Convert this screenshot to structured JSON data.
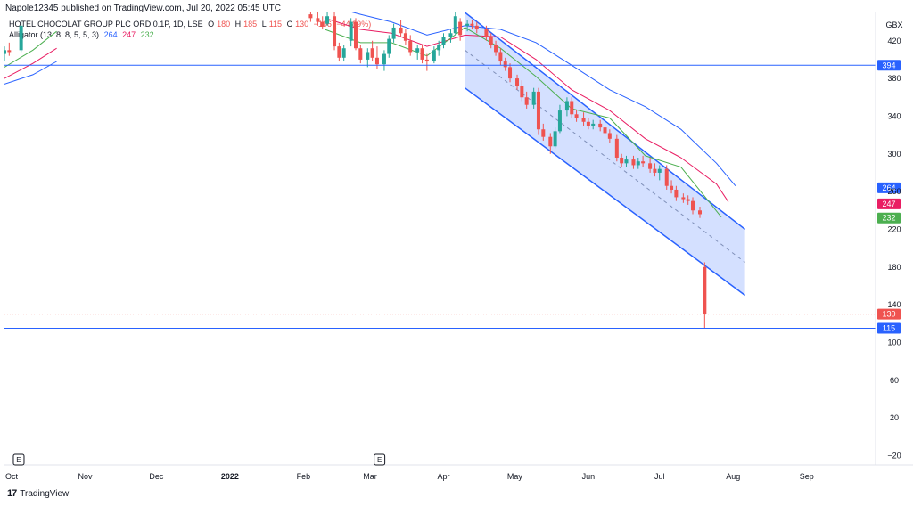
{
  "published": "Napole12345 published on TradingView.com, Jul 20, 2022 05:45 UTC",
  "legend": {
    "symbol": "HOTEL CHOCOLAT GROUP PLC ORD 0.1P, 1D, LSE",
    "o_label": "O",
    "o_value": "180",
    "h_label": "H",
    "h_value": "185",
    "l_label": "L",
    "l_value": "115",
    "c_label": "C",
    "c_value": "130",
    "change": "−106 (−44.89%)",
    "indicator": "Alligator (13, 8, 8, 5, 5, 3)",
    "jaw": "264",
    "teeth": "247",
    "lips": "232"
  },
  "currency": "GBX",
  "brand": "TradingView",
  "colors": {
    "up": "#26a69a",
    "down": "#ef5350",
    "jaw": "#2962ff",
    "teeth": "#e91e63",
    "lips": "#4caf50",
    "hline": "#2962ff",
    "channel": "#2962ff",
    "channel_fill": "rgba(41,98,255,0.2)"
  },
  "chart_data": {
    "type": "candlestick",
    "y_ticks": [
      420,
      380,
      340,
      300,
      260,
      220,
      180,
      140,
      100,
      60,
      20,
      -20
    ],
    "y_tick_labels": [
      "420",
      "380",
      "340",
      "300",
      "260",
      "220",
      "180",
      "140",
      "100",
      "60",
      "20",
      "−20"
    ],
    "ylim": [
      -30,
      450
    ],
    "x_ticks": [
      {
        "date": "2021-10-01",
        "label": "Oct",
        "bold": false
      },
      {
        "date": "2021-11-01",
        "label": "Nov",
        "bold": false
      },
      {
        "date": "2021-12-01",
        "label": "Dec",
        "bold": false
      },
      {
        "date": "2022-01-01",
        "label": "2022",
        "bold": true
      },
      {
        "date": "2022-02-01",
        "label": "Feb",
        "bold": false
      },
      {
        "date": "2022-03-01",
        "label": "Mar",
        "bold": false
      },
      {
        "date": "2022-04-01",
        "label": "Apr",
        "bold": false
      },
      {
        "date": "2022-05-01",
        "label": "May",
        "bold": false
      },
      {
        "date": "2022-06-01",
        "label": "Jun",
        "bold": false
      },
      {
        "date": "2022-07-01",
        "label": "Jul",
        "bold": false
      },
      {
        "date": "2022-08-01",
        "label": "Aug",
        "bold": false
      },
      {
        "date": "2022-09-01",
        "label": "Sep",
        "bold": false
      }
    ],
    "xlim": [
      "2021-09-28",
      "2022-09-30"
    ],
    "price_labels": [
      {
        "value": 394,
        "label": "394",
        "color": "#2962ff"
      },
      {
        "value": 264,
        "label": "264",
        "color": "#2962ff"
      },
      {
        "value": 247,
        "label": "247",
        "color": "#e91e63"
      },
      {
        "value": 232,
        "label": "232",
        "color": "#4caf50"
      },
      {
        "value": 130,
        "label": "130",
        "color": "#ef5350"
      },
      {
        "value": 115,
        "label": "115",
        "color": "#2962ff"
      }
    ],
    "horizontal_lines": [
      394,
      115
    ],
    "last_close_line": 130,
    "earnings_markers": [
      {
        "date": "2021-10-04",
        "label": "E"
      },
      {
        "date": "2022-03-05",
        "label": "E"
      }
    ],
    "channel": {
      "upper": [
        [
          "2022-04-10",
          450
        ],
        [
          "2022-08-06",
          220
        ]
      ],
      "lower": [
        [
          "2022-04-10",
          370
        ],
        [
          "2022-08-06",
          150
        ]
      ],
      "median": [
        [
          "2022-04-10",
          410
        ],
        [
          "2022-08-06",
          185
        ]
      ]
    },
    "series": [
      {
        "name": "Price",
        "ohlc": [
          [
            "2021-09-28",
            406,
            414,
            398,
            410
          ],
          [
            "2021-09-30",
            410,
            418,
            404,
            408
          ],
          [
            "2021-10-05",
            410,
            440,
            408,
            436
          ],
          [
            "2022-02-04",
            448,
            452,
            440,
            444
          ],
          [
            "2022-02-07",
            444,
            450,
            436,
            440
          ],
          [
            "2022-02-09",
            440,
            446,
            432,
            435
          ],
          [
            "2022-02-11",
            438,
            450,
            436,
            446
          ],
          [
            "2022-02-14",
            446,
            450,
            410,
            414
          ],
          [
            "2022-02-16",
            414,
            418,
            398,
            402
          ],
          [
            "2022-02-18",
            402,
            416,
            398,
            412
          ],
          [
            "2022-02-21",
            420,
            444,
            414,
            440
          ],
          [
            "2022-02-23",
            440,
            444,
            410,
            412
          ],
          [
            "2022-02-25",
            412,
            416,
            396,
            400
          ],
          [
            "2022-02-28",
            400,
            412,
            392,
            408
          ],
          [
            "2022-03-02",
            412,
            420,
            398,
            402
          ],
          [
            "2022-03-04",
            402,
            414,
            390,
            395
          ],
          [
            "2022-03-07",
            395,
            410,
            388,
            406
          ],
          [
            "2022-03-09",
            406,
            426,
            402,
            422
          ],
          [
            "2022-03-11",
            422,
            438,
            418,
            434
          ],
          [
            "2022-03-14",
            434,
            442,
            424,
            428
          ],
          [
            "2022-03-16",
            428,
            432,
            416,
            420
          ],
          [
            "2022-03-18",
            420,
            426,
            404,
            408
          ],
          [
            "2022-03-21",
            408,
            416,
            400,
            412
          ],
          [
            "2022-03-23",
            412,
            416,
            396,
            400
          ],
          [
            "2022-03-25",
            400,
            406,
            388,
            398
          ],
          [
            "2022-03-28",
            398,
            414,
            396,
            410
          ],
          [
            "2022-03-30",
            410,
            420,
            404,
            416
          ],
          [
            "2022-04-01",
            416,
            428,
            412,
            424
          ],
          [
            "2022-04-04",
            424,
            432,
            418,
            428
          ],
          [
            "2022-04-06",
            428,
            450,
            426,
            446
          ],
          [
            "2022-04-08",
            440,
            444,
            420,
            426
          ],
          [
            "2022-04-11",
            436,
            442,
            430,
            438
          ],
          [
            "2022-04-13",
            438,
            442,
            432,
            436
          ],
          [
            "2022-04-15",
            436,
            440,
            428,
            432
          ],
          [
            "2022-04-19",
            432,
            436,
            420,
            424
          ],
          [
            "2022-04-21",
            424,
            428,
            412,
            416
          ],
          [
            "2022-04-23",
            416,
            420,
            404,
            408
          ],
          [
            "2022-04-25",
            408,
            412,
            394,
            398
          ],
          [
            "2022-04-27",
            398,
            402,
            388,
            392
          ],
          [
            "2022-04-29",
            392,
            396,
            376,
            380
          ],
          [
            "2022-05-02",
            380,
            384,
            368,
            372
          ],
          [
            "2022-05-04",
            372,
            378,
            356,
            360
          ],
          [
            "2022-05-06",
            360,
            366,
            348,
            352
          ],
          [
            "2022-05-09",
            352,
            370,
            348,
            366
          ],
          [
            "2022-05-11",
            366,
            370,
            320,
            326
          ],
          [
            "2022-05-13",
            326,
            332,
            314,
            318
          ],
          [
            "2022-05-16",
            318,
            322,
            300,
            308
          ],
          [
            "2022-05-18",
            308,
            328,
            306,
            324
          ],
          [
            "2022-05-20",
            324,
            352,
            322,
            346
          ],
          [
            "2022-05-23",
            346,
            360,
            340,
            356
          ],
          [
            "2022-05-25",
            356,
            360,
            338,
            342
          ],
          [
            "2022-05-27",
            342,
            346,
            334,
            338
          ],
          [
            "2022-05-30",
            338,
            344,
            330,
            334
          ],
          [
            "2022-06-01",
            334,
            338,
            326,
            330
          ],
          [
            "2022-06-03",
            330,
            336,
            326,
            332
          ],
          [
            "2022-06-06",
            332,
            336,
            324,
            328
          ],
          [
            "2022-06-08",
            328,
            332,
            318,
            322
          ],
          [
            "2022-06-10",
            322,
            326,
            312,
            316
          ],
          [
            "2022-06-13",
            316,
            320,
            292,
            296
          ],
          [
            "2022-06-15",
            296,
            300,
            286,
            290
          ],
          [
            "2022-06-17",
            290,
            298,
            286,
            294
          ],
          [
            "2022-06-20",
            294,
            298,
            284,
            288
          ],
          [
            "2022-06-22",
            288,
            296,
            284,
            292
          ],
          [
            "2022-06-24",
            292,
            298,
            286,
            290
          ],
          [
            "2022-06-27",
            290,
            296,
            280,
            284
          ],
          [
            "2022-06-29",
            284,
            290,
            276,
            280
          ],
          [
            "2022-07-01",
            280,
            288,
            272,
            284
          ],
          [
            "2022-07-04",
            284,
            288,
            262,
            266
          ],
          [
            "2022-07-06",
            266,
            272,
            258,
            262
          ],
          [
            "2022-07-08",
            262,
            266,
            250,
            254
          ],
          [
            "2022-07-11",
            254,
            258,
            248,
            252
          ],
          [
            "2022-07-13",
            252,
            256,
            246,
            250
          ],
          [
            "2022-07-15",
            250,
            254,
            236,
            240
          ],
          [
            "2022-07-18",
            240,
            244,
            232,
            236
          ],
          [
            "2022-07-20",
            180,
            185,
            115,
            130
          ]
        ]
      },
      {
        "name": "Jaw",
        "x": [
          "2021-09-28",
          "2021-10-10",
          "2021-10-20",
          "2022-02-10",
          "2022-02-25",
          "2022-03-10",
          "2022-03-25",
          "2022-04-10",
          "2022-04-25",
          "2022-05-10",
          "2022-05-25",
          "2022-06-10",
          "2022-06-25",
          "2022-07-10",
          "2022-07-25",
          "2022-08-02"
        ],
        "values": [
          374,
          384,
          398,
          458,
          448,
          440,
          426,
          436,
          432,
          418,
          394,
          368,
          350,
          326,
          290,
          266
        ]
      },
      {
        "name": "Teeth",
        "x": [
          "2021-09-28",
          "2021-10-10",
          "2021-10-20",
          "2022-02-10",
          "2022-02-25",
          "2022-03-10",
          "2022-03-25",
          "2022-04-10",
          "2022-04-25",
          "2022-05-10",
          "2022-05-25",
          "2022-06-10",
          "2022-06-25",
          "2022-07-10",
          "2022-07-25",
          "2022-07-30"
        ],
        "values": [
          380,
          396,
          412,
          444,
          432,
          428,
          414,
          426,
          424,
          400,
          368,
          346,
          316,
          296,
          268,
          249
        ]
      },
      {
        "name": "Lips",
        "x": [
          "2021-09-28",
          "2021-10-10",
          "2021-10-20",
          "2022-02-10",
          "2022-02-25",
          "2022-03-10",
          "2022-03-25",
          "2022-04-10",
          "2022-04-25",
          "2022-05-10",
          "2022-05-25",
          "2022-06-10",
          "2022-06-25",
          "2022-07-10",
          "2022-07-20",
          "2022-07-27"
        ],
        "values": [
          392,
          410,
          430,
          432,
          418,
          418,
          404,
          434,
          412,
          382,
          348,
          338,
          298,
          286,
          255,
          233
        ]
      }
    ]
  }
}
